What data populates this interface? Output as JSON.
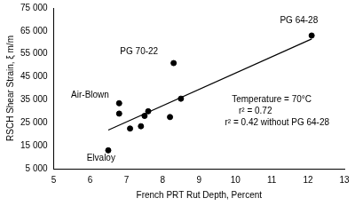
{
  "chart_data": {
    "type": "scatter",
    "x_label": "French PRT Rut Depth, Percent",
    "y_label": "RSCH Shear Strain, ξ m/m",
    "xlim": [
      5,
      13
    ],
    "xticks": [
      5,
      6,
      7,
      8,
      9,
      10,
      11,
      12,
      13
    ],
    "ylim": [
      5000,
      75000
    ],
    "yticks": [
      {
        "value": 5000,
        "label": "5 000"
      },
      {
        "value": 15000,
        "label": "15 000"
      },
      {
        "value": 25000,
        "label": "25 000"
      },
      {
        "value": 35000,
        "label": "35 000"
      },
      {
        "value": 45000,
        "label": "45 000"
      },
      {
        "value": 55000,
        "label": "55 000"
      },
      {
        "value": 65000,
        "label": "65 000"
      },
      {
        "value": 75000,
        "label": "75 000"
      }
    ],
    "grid": false,
    "series": [
      {
        "type": "scatter",
        "color": "#000000",
        "marker": "circle",
        "x": [
          6.5,
          6.8,
          6.8,
          7.1,
          7.4,
          7.5,
          7.6,
          8.2,
          8.3,
          8.5,
          12.1
        ],
        "values": [
          13000,
          33500,
          29000,
          22500,
          23500,
          28000,
          30000,
          27500,
          51000,
          35500,
          63000
        ]
      },
      {
        "type": "line",
        "color": "#000000",
        "line_style": "solid",
        "x": [
          6.5,
          12.1
        ],
        "values": [
          21800,
          61500
        ]
      }
    ],
    "annotations": [
      {
        "text": "PG 64-28",
        "x": 11.75,
        "y": 69500
      },
      {
        "text": "PG 70-22",
        "x": 7.35,
        "y": 56000
      },
      {
        "text": "Air-Blown",
        "x": 6.0,
        "y": 37000
      },
      {
        "text": "Elvaloy",
        "x": 6.3,
        "y": 9500
      },
      {
        "text": "Temperature = 70°C",
        "x": 11.0,
        "y": 35000
      },
      {
        "text": "r² = 0.72",
        "x": 10.55,
        "y": 30000
      },
      {
        "text": "r² = 0.42 without PG 64-28",
        "x": 11.15,
        "y": 25000
      }
    ]
  }
}
